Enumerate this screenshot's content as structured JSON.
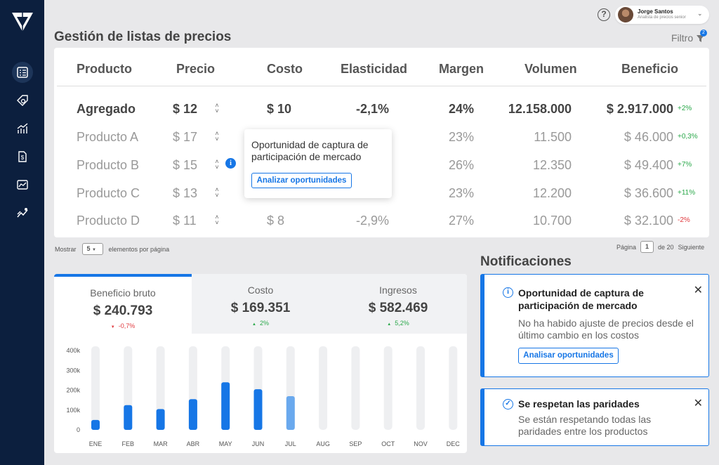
{
  "user": {
    "name": "Jorge Santos",
    "role": "Analista de precios senior"
  },
  "page": {
    "title": "Gestión de listas de precios",
    "filter_label": "Filtro",
    "filter_count": "2"
  },
  "table": {
    "headers": [
      "Producto",
      "Precio",
      "Costo",
      "Elasticidad",
      "Margen",
      "Volumen",
      "Beneficio"
    ],
    "rows": [
      {
        "producto": "Agregado",
        "precio": "$ 12",
        "costo": "$ 10",
        "elasticidad": "-2,1%",
        "margen": "24%",
        "volumen": "12.158.000",
        "beneficio": "$ 2.917.000",
        "cambio": "+2%"
      },
      {
        "producto": "Producto A",
        "precio": "$ 17",
        "costo": "",
        "elasticidad": "",
        "margen": "23%",
        "volumen": "11.500",
        "beneficio": "$ 46.000",
        "cambio": "+0,3%"
      },
      {
        "producto": "Producto B",
        "precio": "$ 15",
        "costo": "",
        "elasticidad": "",
        "margen": "26%",
        "volumen": "12.350",
        "beneficio": "$ 49.400",
        "cambio": "+7%"
      },
      {
        "producto": "Producto C",
        "precio": "$ 13",
        "costo": "",
        "elasticidad": "",
        "margen": "23%",
        "volumen": "12.200",
        "beneficio": "$ 36.600",
        "cambio": "+11%"
      },
      {
        "producto": "Producto D",
        "precio": "$ 11",
        "costo": "$ 8",
        "elasticidad": "-2,9%",
        "margen": "27%",
        "volumen": "10.700",
        "beneficio": "$ 32.100",
        "cambio": "-2%"
      }
    ]
  },
  "tooltip": {
    "text": "Oportunidad de captura de participación de mercado",
    "button": "Analizar oportunidades",
    "info_glyph": "i"
  },
  "pagination": {
    "show_label": "Mostrar",
    "per_page": "5",
    "per_page_suffix": "elementos por página",
    "page_label": "Página",
    "current_page": "1",
    "total_label": "de 20",
    "next_label": "Siguiente"
  },
  "kpis": [
    {
      "label": "Beneficio bruto",
      "value": "$ 240.793",
      "change": "-0,7%",
      "direction": "down"
    },
    {
      "label": "Costo",
      "value": "$ 169.351",
      "change": "2%",
      "direction": "up"
    },
    {
      "label": "Ingresos",
      "value": "$ 582.469",
      "change": "5,2%",
      "direction": "up"
    }
  ],
  "chart_data": {
    "type": "bar",
    "categories": [
      "ENE",
      "FEB",
      "MAR",
      "ABR",
      "MAY",
      "JUN",
      "JUL",
      "AUG",
      "SEP",
      "OCT",
      "NOV",
      "DEC"
    ],
    "values": [
      50000,
      125000,
      105000,
      155000,
      240000,
      205000,
      170000,
      null,
      null,
      null,
      null,
      null
    ],
    "highlighted_index": 6,
    "y_ticks": [
      "400k",
      "300k",
      "200k",
      "100k",
      "0"
    ],
    "ylim": [
      0,
      400000
    ],
    "colors": {
      "bar": "#1676e6",
      "bar_light": "#6aa9ee",
      "track": "#eeeff1"
    }
  },
  "notifications": {
    "title": "Notificaciones",
    "items": [
      {
        "title": "Oportunidad de captura de participación de mercado",
        "body": "No ha habido ajuste de precios desde el último cambio en los costos",
        "button": "Analisar oportunidades",
        "icon": "info-icon"
      },
      {
        "title": "Se respetan las paridades",
        "body": "Se están respetando todas las paridades entre los productos",
        "icon": "check-circle-icon"
      }
    ]
  },
  "colors": {
    "accent": "#1676e6",
    "sidebar": "#0c1f3e",
    "positive": "#2aa84a",
    "negative": "#e0393e"
  }
}
